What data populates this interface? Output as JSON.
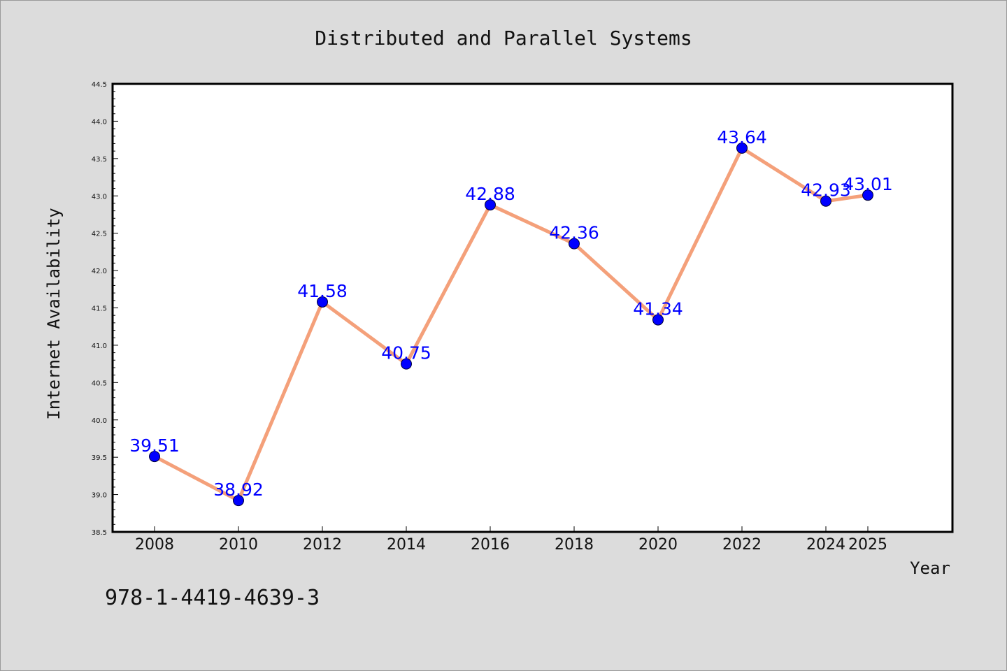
{
  "chart_data": {
    "type": "line",
    "title": "Distributed and Parallel Systems",
    "xlabel": "Year",
    "ylabel": "Internet Availability",
    "categories": [
      "2008",
      "2010",
      "2012",
      "2014",
      "2016",
      "2018",
      "2020",
      "2022",
      "2024",
      "2025"
    ],
    "series": [
      {
        "values": [
          39.51,
          38.92,
          41.58,
          40.75,
          42.88,
          42.36,
          41.34,
          43.64,
          42.93,
          43.01
        ],
        "line_color": "#f4a07a",
        "marker_color": "#0000ff"
      }
    ],
    "data_labels": [
      "39.51",
      "38.92",
      "41.58",
      "40.75",
      "42.88",
      "42.36",
      "41.34",
      "43.64",
      "42.93",
      "43.01"
    ],
    "ylim": [
      38.5,
      44.5
    ],
    "yticks": [
      "38.5",
      "39.0",
      "39.5",
      "40.0",
      "40.5",
      "41.0",
      "41.5",
      "42.0",
      "42.5",
      "43.0",
      "43.5",
      "44.0",
      "44.5"
    ],
    "grid": false,
    "legend": "none",
    "colors": {
      "background": "#dcdcdc",
      "plot_background": "#ffffff",
      "label": "#0000ff"
    }
  },
  "footer": {
    "isbn": "978-1-4419-4639-3"
  }
}
